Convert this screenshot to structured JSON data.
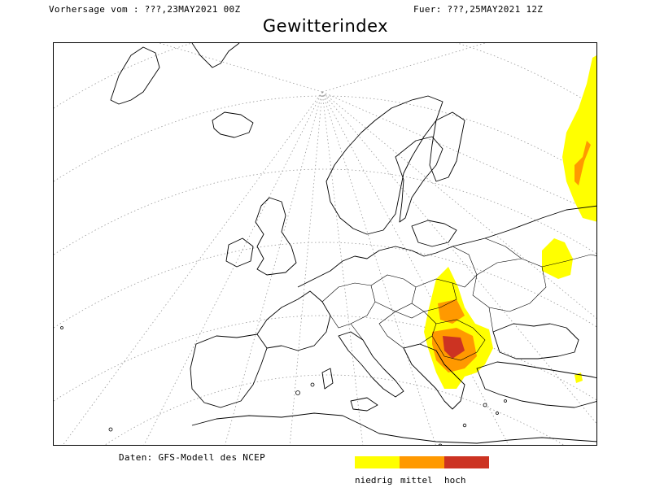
{
  "header": {
    "forecast_from": "Vorhersage vom : ???,23MAY2021 00Z",
    "valid_for": "Fuer: ???,25MAY2021 12Z"
  },
  "title": "Gewitterindex",
  "source": "Daten: GFS-Modell des NCEP",
  "legend": {
    "items": [
      {
        "label": "niedrig",
        "color": "#ffff00"
      },
      {
        "label": "mittel",
        "color": "#ff9900"
      },
      {
        "label": "hoch",
        "color": "#cc3322"
      }
    ]
  },
  "map": {
    "region": "Europe",
    "coastline_color": "#000000",
    "graticule_color": "#999999"
  }
}
